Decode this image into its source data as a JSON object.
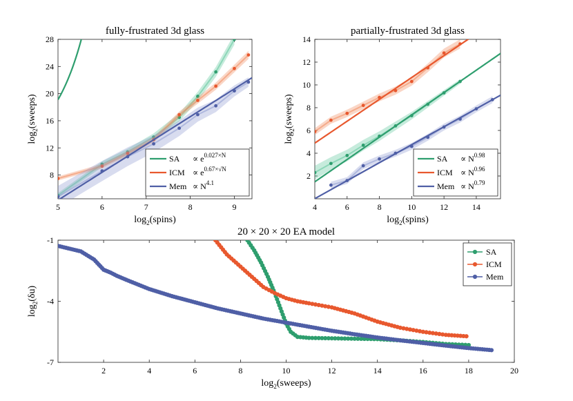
{
  "colors": {
    "sa": "#2e9e6e",
    "icm": "#e8582e",
    "mem": "#4f5fa6",
    "sa_light": "#5cc79a",
    "icm_light": "#f08a5c",
    "mem_light": "#8e9bd0"
  },
  "chart_data": [
    {
      "type": "scatter",
      "title": "fully-frustrated 3d glass",
      "xlabel": "log2(spins)",
      "ylabel": "log2(sweeps)",
      "xlim": [
        5,
        9.4
      ],
      "ylim": [
        4.5,
        28
      ],
      "xticks": [
        5,
        6,
        7,
        8,
        9
      ],
      "xtick_labels": [
        "5",
        "6",
        "7",
        "8",
        "9"
      ],
      "yticks": [
        8,
        12,
        16,
        20,
        24,
        28
      ],
      "ytick_labels": [
        "8",
        "12",
        "16",
        "20",
        "24",
        "28"
      ],
      "legend_position": "bottom-right",
      "series": [
        {
          "name": "SA",
          "label": "SA",
          "fit_label": "∝ e^{0.027×N}",
          "color": "sa",
          "x": [
            5.0,
            6.0,
            6.58,
            7.17,
            7.75,
            8.17,
            8.58,
            9.0
          ],
          "y": [
            5.0,
            9.6,
            11.4,
            13.6,
            16.5,
            19.6,
            23.2,
            28.0
          ],
          "fit": {
            "kind": "exp",
            "a": 8.05,
            "b": 0.027
          },
          "band": [
            0.35,
            0.8
          ]
        },
        {
          "name": "ICM",
          "label": "ICM",
          "fit_label": "∝ e^{0.67×√N}",
          "color": "icm",
          "x": [
            5.0,
            6.0,
            6.58,
            7.17,
            7.75,
            8.17,
            8.58,
            9.0,
            9.32
          ],
          "y": [
            7.5,
            9.3,
            11.2,
            13.2,
            16.9,
            19.0,
            21.1,
            23.7,
            25.7
          ],
          "fit": {
            "kind": "expsqrt",
            "a": 3.36,
            "b": 0.67
          },
          "band": [
            0.3,
            0.6
          ]
        },
        {
          "name": "Mem",
          "label": "Mem",
          "fit_label": "∝ N^{4.1}",
          "color": "mem",
          "x": [
            5.0,
            6.0,
            6.58,
            7.17,
            7.75,
            8.17,
            8.58,
            9.0,
            9.32
          ],
          "y": [
            4.8,
            8.6,
            10.7,
            12.6,
            14.9,
            16.9,
            18.2,
            20.4,
            21.7
          ],
          "fit": {
            "kind": "linear",
            "slope": 4.1,
            "intercept": -16.2
          },
          "band": [
            1.6,
            0.7
          ]
        }
      ]
    },
    {
      "type": "scatter",
      "title": "partially-frustrated 3d glass",
      "xlabel": "log2(spins)",
      "ylabel": "log2(sweeps)",
      "xlim": [
        4,
        15.5
      ],
      "ylim": [
        0,
        14
      ],
      "xticks": [
        4,
        6,
        8,
        10,
        12,
        14
      ],
      "xtick_labels": [
        "4",
        "6",
        "8",
        "10",
        "12",
        "14"
      ],
      "yticks": [
        2,
        4,
        6,
        8,
        10,
        12,
        14
      ],
      "ytick_labels": [
        "2",
        "4",
        "6",
        "8",
        "10",
        "12",
        "14"
      ],
      "legend_position": "bottom-right",
      "series": [
        {
          "name": "SA",
          "label": "SA",
          "fit_label": "∝ N^{0.98}",
          "color": "sa",
          "x": [
            4,
            5,
            6,
            7,
            8,
            9,
            10,
            11,
            12,
            13
          ],
          "y": [
            2.3,
            3.1,
            3.8,
            4.7,
            5.5,
            6.4,
            7.3,
            8.3,
            9.3,
            10.3
          ],
          "fit": {
            "kind": "linear",
            "slope": 0.98,
            "intercept": -2.43
          },
          "band": [
            0.6,
            0.2
          ]
        },
        {
          "name": "ICM",
          "label": "ICM",
          "fit_label": "∝ N^{0.96}",
          "color": "icm",
          "x": [
            4,
            5,
            6,
            7,
            8,
            9,
            10,
            11,
            12,
            13
          ],
          "y": [
            5.9,
            6.9,
            7.5,
            8.2,
            8.9,
            9.5,
            10.3,
            11.5,
            12.8,
            13.6
          ],
          "fit": {
            "kind": "linear",
            "slope": 0.96,
            "intercept": 1.05
          },
          "band": [
            0.3,
            0.4
          ]
        },
        {
          "name": "Mem",
          "label": "Mem",
          "fit_label": "∝ N^{0.79}",
          "color": "mem",
          "x": [
            5,
            6,
            7,
            8,
            9,
            10,
            11,
            12,
            13,
            14,
            15
          ],
          "y": [
            1.2,
            1.6,
            2.9,
            3.5,
            4.0,
            4.6,
            5.4,
            6.3,
            7.0,
            7.9,
            8.7
          ],
          "fit": {
            "kind": "linear",
            "slope": 0.79,
            "intercept": -3.15
          },
          "band": [
            0.3,
            0.3
          ]
        }
      ]
    },
    {
      "type": "line",
      "title": "20 × 20 × 20 EA model",
      "xlabel": "log2(sweeps)",
      "ylabel": "log2(δu)",
      "xlim": [
        0,
        20
      ],
      "ylim": [
        -7,
        -1
      ],
      "xticks": [
        2,
        4,
        6,
        8,
        10,
        12,
        14,
        16,
        18,
        20
      ],
      "xtick_labels": [
        "2",
        "4",
        "6",
        "8",
        "10",
        "12",
        "14",
        "16",
        "18",
        "20"
      ],
      "yticks": [
        -7,
        -4,
        -1
      ],
      "ytick_labels": [
        "-7",
        "-4",
        "-1"
      ],
      "legend_position": "top-right",
      "series": [
        {
          "name": "SA",
          "label": "SA",
          "color": "sa",
          "x": [
            8.3,
            8.6,
            8.9,
            9.2,
            9.5,
            9.8,
            10.0,
            10.2,
            10.5,
            11,
            12,
            13,
            14,
            15,
            16,
            17,
            18
          ],
          "y": [
            -1.0,
            -1.5,
            -2.1,
            -2.8,
            -3.6,
            -4.5,
            -5.1,
            -5.5,
            -5.75,
            -5.8,
            -5.82,
            -5.84,
            -5.86,
            -5.92,
            -6.0,
            -6.1,
            -6.15
          ]
        },
        {
          "name": "ICM",
          "label": "ICM",
          "color": "icm",
          "x": [
            6.9,
            7.4,
            8.0,
            8.6,
            9.0,
            9.5,
            10.0,
            10.5,
            11.0,
            12.0,
            13.0,
            14.0,
            15.0,
            16.0,
            17.0,
            17.9
          ],
          "y": [
            -1.0,
            -1.7,
            -2.3,
            -2.9,
            -3.3,
            -3.6,
            -3.85,
            -4.0,
            -4.1,
            -4.3,
            -4.6,
            -5.0,
            -5.3,
            -5.5,
            -5.65,
            -5.72
          ]
        },
        {
          "name": "Mem",
          "label": "Mem",
          "color": "mem",
          "x": [
            0,
            1,
            1.58,
            2.0,
            2.32,
            2.58,
            3.0,
            4.0,
            5.0,
            6.0,
            7.0,
            8.0,
            9.0,
            10.0,
            11.0,
            12.0,
            13.0,
            14.0,
            15.0,
            16.0,
            17.0,
            18.0,
            19.0
          ],
          "y": [
            -1.28,
            -1.55,
            -1.95,
            -2.45,
            -2.6,
            -2.75,
            -2.95,
            -3.4,
            -3.75,
            -4.05,
            -4.35,
            -4.6,
            -4.85,
            -5.05,
            -5.25,
            -5.45,
            -5.62,
            -5.78,
            -5.92,
            -6.05,
            -6.18,
            -6.3,
            -6.4
          ]
        }
      ]
    }
  ]
}
